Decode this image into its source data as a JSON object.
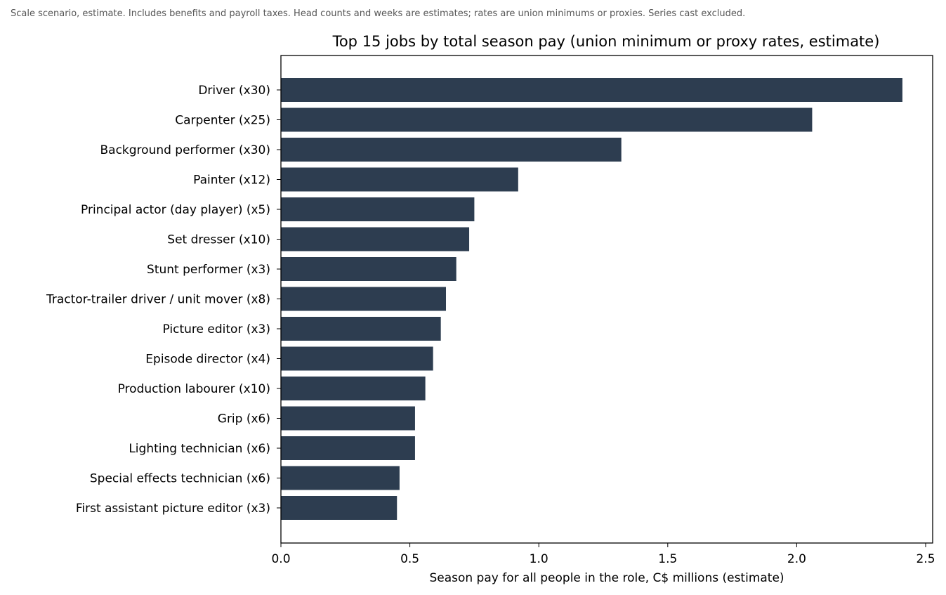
{
  "note": "Scale scenario, estimate. Includes benefits and payroll taxes. Head counts and weeks are estimates; rates are union minimums or proxies. Series cast excluded.",
  "chart_data": {
    "type": "bar",
    "orientation": "horizontal",
    "title": "Top 15 jobs by total season pay (union minimum or proxy rates, estimate)",
    "xlabel": "Season pay for all people in the role, C$ millions (estimate)",
    "ylabel": "",
    "xlim": [
      0,
      2.5
    ],
    "xticks": [
      "0.0",
      "0.5",
      "1.0",
      "1.5",
      "2.0",
      "2.5"
    ],
    "grid": false,
    "bar_color": "#2d3d50",
    "categories": [
      "Driver (x30)",
      "Carpenter (x25)",
      "Background performer (x30)",
      "Painter (x12)",
      "Principal actor (day player) (x5)",
      "Set dresser (x10)",
      "Stunt performer (x3)",
      "Tractor-trailer driver / unit mover (x8)",
      "Picture editor (x3)",
      "Episode director (x4)",
      "Production labourer (x10)",
      "Grip (x6)",
      "Lighting technician (x6)",
      "Special effects technician (x6)",
      "First assistant picture editor (x3)"
    ],
    "values": [
      2.41,
      2.06,
      1.32,
      0.92,
      0.75,
      0.73,
      0.68,
      0.64,
      0.62,
      0.59,
      0.56,
      0.52,
      0.52,
      0.46,
      0.45
    ]
  }
}
